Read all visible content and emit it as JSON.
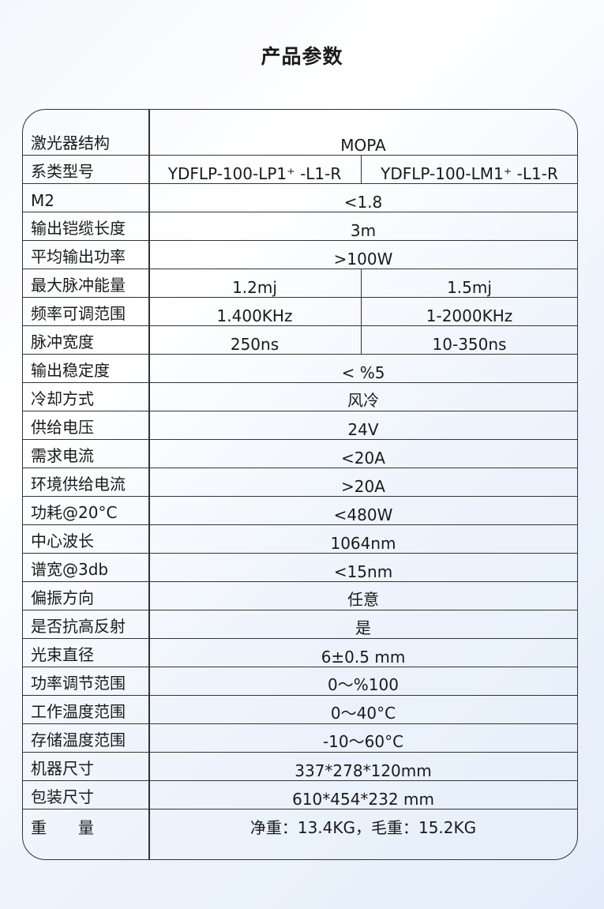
{
  "title": "产品参数",
  "rows": [
    {
      "label": "激光器结构",
      "value": "MOPA"
    },
    {
      "label": "系类型号",
      "values": [
        "YDFLP-100-LP1⁺ -L1-R",
        "YDFLP-100-LM1⁺ -L1-R"
      ]
    },
    {
      "label": "M2",
      "value": "<1.8"
    },
    {
      "label": "输出铠缆长度",
      "value": "3m"
    },
    {
      "label": "平均输出功率",
      "value": ">100W"
    },
    {
      "label": "最大脉冲能量",
      "values": [
        "1.2mj",
        "1.5mj"
      ]
    },
    {
      "label": "频率可调范围",
      "values": [
        "1.400KHz",
        "1-2000KHz"
      ]
    },
    {
      "label": "脉冲宽度",
      "values": [
        "250ns",
        "10-350ns"
      ]
    },
    {
      "label": "输出稳定度",
      "value": "< %5"
    },
    {
      "label": "冷却方式",
      "value": "风冷"
    },
    {
      "label": "供给电压",
      "value": "24V"
    },
    {
      "label": "需求电流",
      "value": "<20A"
    },
    {
      "label": "环境供给电流",
      "value": ">20A"
    },
    {
      "label": "功耗@20°C",
      "value": "<480W"
    },
    {
      "label": "中心波长",
      "value": "1064nm"
    },
    {
      "label": "谱宽@3db",
      "value": "<15nm"
    },
    {
      "label": "偏振方向",
      "value": "任意"
    },
    {
      "label": "是否抗高反射",
      "value": "是"
    },
    {
      "label": "光束直径",
      "value": "6±0.5 mm"
    },
    {
      "label": "功率调节范围",
      "value": "0～%100"
    },
    {
      "label": "工作温度范围",
      "value": "0～40°C"
    },
    {
      "label": "存储温度范围",
      "value": "-10～60°C"
    },
    {
      "label": "机器尺寸",
      "value": "337*278*120mm"
    },
    {
      "label": "包装尺寸",
      "value": "610*454*232 mm"
    },
    {
      "label": "重　　量",
      "value": "净重：13.4KG，毛重：15.2KG"
    }
  ]
}
